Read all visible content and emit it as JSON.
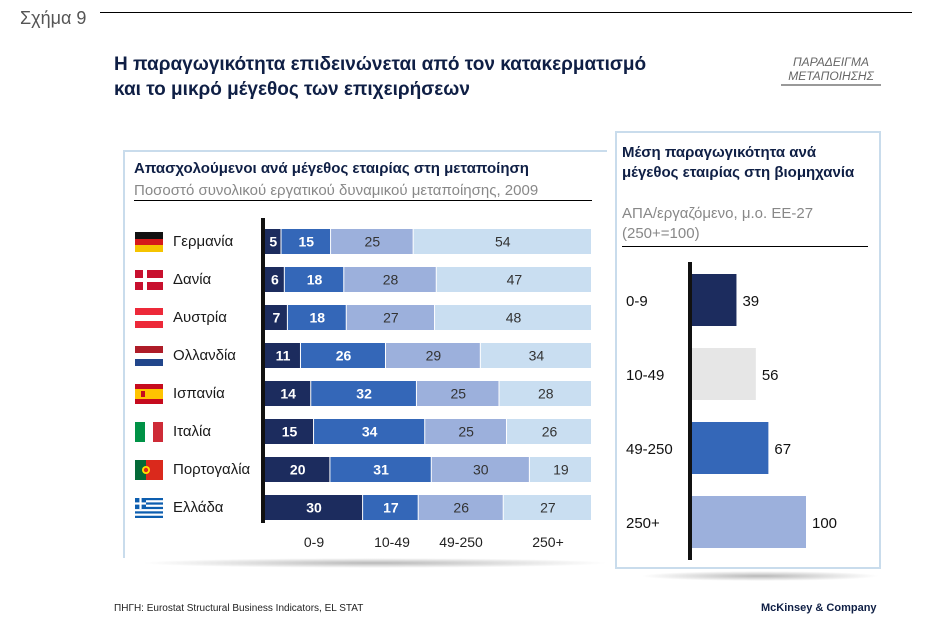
{
  "figure_label": "Σχήμα 9",
  "title_line1": "Η παραγωγικότητα επιδεινώνεται από τον κατακερματισμό",
  "title_line2": "και το μικρό μέγεθος των επιχειρήσεων",
  "tag_line1": "ΠΑΡΑΔΕΙΓΜΑ",
  "tag_line2": "ΜΕΤΑΠΟΙΗΣΗΣ",
  "footer_source": "ΠΗΓΗ: Eurostat Structural Business Indicators, EL STAT",
  "footer_brand": "McKinsey & Company",
  "colors": {
    "dark_navy": "#1c2c5e",
    "medium_blue": "#3467b8",
    "light_blue": "#9cb0dc",
    "pale_blue": "#c9def1",
    "light_gray": "#e6e6e6",
    "title_navy": "#0f1f45"
  },
  "chart_data": [
    {
      "type": "bar",
      "orientation": "horizontal",
      "stacked": true,
      "title": "Απασχολούμενοι ανά μέγεθος εταιρίας στη μεταποίηση",
      "subtitle": "Ποσοστό συνολικού εργατικού δυναμικού μεταποίησης, 2009",
      "categories": [
        "Γερμανία",
        "Δανία",
        "Αυστρία",
        "Ολλανδία",
        "Ισπανία",
        "Ιταλία",
        "Πορτογαλία",
        "Ελλάδα"
      ],
      "flags": [
        "germany-flag-icon",
        "denmark-flag-icon",
        "austria-flag-icon",
        "netherlands-flag-icon",
        "spain-flag-icon",
        "italy-flag-icon",
        "portugal-flag-icon",
        "greece-flag-icon"
      ],
      "series": [
        {
          "name": "0-9",
          "values": [
            5,
            6,
            7,
            11,
            14,
            15,
            20,
            30
          ],
          "color": "#1c2c5e",
          "label_color": "#ffffff"
        },
        {
          "name": "10-49",
          "values": [
            15,
            18,
            18,
            26,
            32,
            34,
            31,
            17
          ],
          "color": "#3467b8",
          "label_color": "#ffffff"
        },
        {
          "name": "49-250",
          "values": [
            25,
            28,
            27,
            29,
            25,
            25,
            30,
            26
          ],
          "color": "#9cb0dc",
          "label_color": "#333333"
        },
        {
          "name": "250+",
          "values": [
            54,
            47,
            48,
            34,
            28,
            26,
            19,
            27
          ],
          "color": "#c9def1",
          "label_color": "#333333"
        }
      ],
      "legend": "bottom"
    },
    {
      "type": "bar",
      "orientation": "horizontal",
      "title": "Μέση παραγωγικότητα ανά μέγεθος εταιρίας στη βιομηχανία",
      "subtitle_line1": "ΑΠΑ/εργαζόμενο, μ.ο. ΕΕ-27",
      "subtitle_line2": "(250+=100)",
      "categories": [
        "0-9",
        "10-49",
        "49-250",
        "250+"
      ],
      "values": [
        39,
        56,
        67,
        100
      ],
      "colors": [
        "#1c2c5e",
        "#e6e6e6",
        "#3467b8",
        "#9cb0dc"
      ]
    }
  ]
}
